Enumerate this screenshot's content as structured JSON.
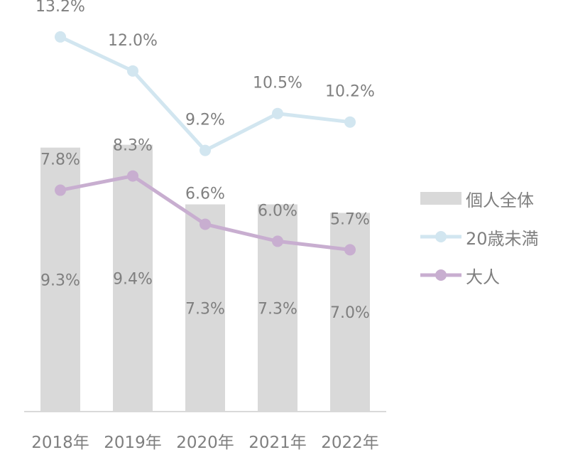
{
  "chart_data": {
    "type": "bar+line",
    "categories": [
      "2018年",
      "2019年",
      "2020年",
      "2021年",
      "2022年"
    ],
    "bar_series": {
      "name": "個人全体",
      "values": [
        9.3,
        9.4,
        7.3,
        7.3,
        7.0
      ],
      "labels": [
        "9.3%",
        "9.4%",
        "7.3%",
        "7.3%",
        "7.0%"
      ],
      "color": "#d9d9d9"
    },
    "line_series": [
      {
        "name": "20歳未満",
        "values": [
          13.2,
          12.0,
          9.2,
          10.5,
          10.2
        ],
        "labels": [
          "13.2%",
          "12.0%",
          "9.2%",
          "10.5%",
          "10.2%"
        ],
        "color": "#d2e6f0"
      },
      {
        "name": "大人",
        "values": [
          7.8,
          8.3,
          6.6,
          6.0,
          5.7
        ],
        "labels": [
          "7.8%",
          "8.3%",
          "6.6%",
          "6.0%",
          "5.7%"
        ],
        "color": "#c8aed0"
      }
    ],
    "ylim": [
      0,
      14.5
    ],
    "grid": false,
    "legend_position": "right"
  }
}
